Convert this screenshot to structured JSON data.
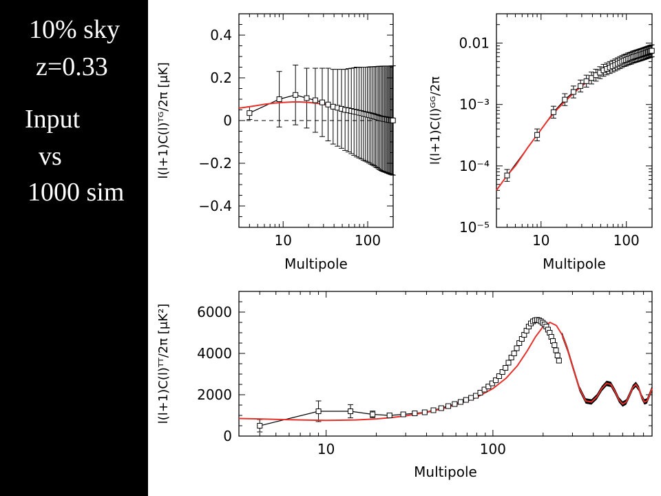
{
  "sidebar": {
    "line1": "10% sky",
    "line2": "z=0.33",
    "line3": "Input",
    "line4": "vs",
    "line5": "1000 sim"
  },
  "colors": {
    "sidebar_bg": "#000000",
    "model_line": "#e8302a",
    "data_line": "#000000"
  },
  "chart_data": [
    {
      "id": "tg",
      "type": "line",
      "xscale": "log",
      "xlim": [
        3,
        200
      ],
      "ylim": [
        -0.5,
        0.5
      ],
      "xlabel": "Multipole",
      "ylabel": "l(l+1)C(l)ᵀᴳ/2π  [μK]",
      "xticks": [
        10,
        100
      ],
      "xtick_labels": [
        "10",
        "100"
      ],
      "yticks": [
        -0.4,
        -0.2,
        0,
        0.2,
        0.4
      ],
      "ytick_labels": [
        "−0.4",
        "−0.2",
        "0",
        "0.2",
        "0.4"
      ],
      "zero_line": true,
      "series": [
        {
          "role": "data",
          "marker": "square",
          "x": [
            4,
            9,
            14,
            19,
            24,
            29,
            34,
            39,
            44,
            49,
            54,
            59,
            64,
            69,
            74,
            79,
            84,
            89,
            94,
            99,
            104,
            109,
            114,
            119,
            124,
            129,
            134,
            139,
            144,
            149,
            154,
            159,
            164,
            169,
            174,
            179,
            184,
            189,
            194,
            199
          ],
          "y": [
            0.035,
            0.1,
            0.12,
            0.105,
            0.095,
            0.085,
            0.075,
            0.065,
            0.06,
            0.055,
            0.05,
            0.048,
            0.045,
            0.042,
            0.04,
            0.037,
            0.035,
            0.032,
            0.03,
            0.028,
            0.026,
            0.024,
            0.022,
            0.02,
            0.018,
            0.016,
            0.014,
            0.012,
            0.01,
            0.009,
            0.008,
            0.007,
            0.006,
            0.005,
            0.004,
            0.003,
            0.002,
            0.0015,
            0.001,
            0.0005
          ],
          "err": [
            0.03,
            0.13,
            0.14,
            0.14,
            0.15,
            0.16,
            0.17,
            0.175,
            0.18,
            0.185,
            0.19,
            0.195,
            0.2,
            0.205,
            0.21,
            0.212,
            0.215,
            0.218,
            0.22,
            0.222,
            0.225,
            0.228,
            0.23,
            0.232,
            0.235,
            0.237,
            0.24,
            0.242,
            0.244,
            0.246,
            0.247,
            0.248,
            0.249,
            0.25,
            0.251,
            0.252,
            0.253,
            0.254,
            0.255,
            0.256
          ]
        },
        {
          "role": "model",
          "x": [
            3,
            4,
            5,
            6,
            8,
            10,
            13,
            16,
            20,
            25,
            30,
            40,
            50,
            60,
            70,
            80,
            100,
            120,
            140,
            160,
            180,
            200
          ],
          "y": [
            0.058,
            0.065,
            0.071,
            0.076,
            0.082,
            0.085,
            0.087,
            0.087,
            0.085,
            0.081,
            0.076,
            0.066,
            0.057,
            0.049,
            0.042,
            0.036,
            0.027,
            0.02,
            0.015,
            0.011,
            0.008,
            0.005
          ]
        }
      ]
    },
    {
      "id": "gg",
      "type": "line",
      "xscale": "log",
      "yscale": "log",
      "xlim": [
        3,
        200
      ],
      "ylim": [
        1e-05,
        0.03
      ],
      "xlabel": "Multipole",
      "ylabel": "l(l+1)C(l)ᴳᴳ/2π",
      "xticks": [
        10,
        100
      ],
      "xtick_labels": [
        "10",
        "100"
      ],
      "yticks": [
        1e-05,
        0.0001,
        0.001,
        0.01
      ],
      "ytick_labels": [
        "10⁻⁵",
        "10⁻⁴",
        "10⁻³",
        "0.01"
      ],
      "series": [
        {
          "role": "data",
          "marker": "square",
          "x": [
            4,
            9,
            14,
            19,
            24,
            29,
            34,
            39,
            44,
            49,
            54,
            59,
            64,
            69,
            74,
            79,
            84,
            89,
            94,
            99,
            104,
            109,
            114,
            119,
            124,
            129,
            134,
            139,
            144,
            149,
            154,
            159,
            164,
            169,
            174,
            179,
            184,
            189,
            194,
            199
          ],
          "y": [
            7e-05,
            0.00032,
            0.00075,
            0.0012,
            0.0016,
            0.002,
            0.0024,
            0.0027,
            0.003,
            0.0033,
            0.0036,
            0.0038,
            0.004,
            0.0042,
            0.0044,
            0.0046,
            0.0048,
            0.005,
            0.0052,
            0.0053,
            0.0055,
            0.0056,
            0.0057,
            0.0059,
            0.006,
            0.0061,
            0.0062,
            0.0063,
            0.0064,
            0.0065,
            0.0066,
            0.0067,
            0.0068,
            0.0069,
            0.007,
            0.0071,
            0.0072,
            0.0073,
            0.0074,
            0.0075
          ],
          "err_factor": 1.25
        },
        {
          "role": "model",
          "x": [
            3,
            4,
            5,
            7,
            9,
            12,
            15,
            20,
            25,
            30,
            40,
            50,
            60,
            80,
            100,
            130,
            160,
            200
          ],
          "y": [
            4e-05,
            7e-05,
            0.0001,
            0.0002,
            0.00032,
            0.00055,
            0.0008,
            0.0012,
            0.0016,
            0.002,
            0.0027,
            0.0033,
            0.0038,
            0.0046,
            0.0053,
            0.0062,
            0.0069,
            0.0077
          ]
        }
      ]
    },
    {
      "id": "tt",
      "type": "line",
      "xscale": "log",
      "xlim": [
        3,
        900
      ],
      "ylim": [
        0,
        7000
      ],
      "xlabel": "Multipole",
      "ylabel": "l(l+1)C(l)ᵀᵀ/2π  [μK²]",
      "xticks": [
        10,
        100
      ],
      "xtick_labels": [
        "10",
        "100"
      ],
      "yticks": [
        0,
        2000,
        4000,
        6000
      ],
      "ytick_labels": [
        "0",
        "2000",
        "4000",
        "6000"
      ],
      "series": [
        {
          "role": "data",
          "marker": "square",
          "x": [
            4,
            9,
            14,
            19,
            24,
            29,
            34,
            39,
            44,
            49,
            54,
            59,
            64,
            69,
            74,
            79,
            84,
            89,
            94,
            99,
            104,
            109,
            114,
            119,
            124,
            129,
            134,
            139,
            144,
            149,
            154,
            159,
            164,
            169,
            174,
            179,
            184,
            189,
            194,
            199,
            204,
            209,
            214,
            219,
            224,
            229,
            234,
            239,
            244,
            249
          ],
          "y": [
            500,
            1200,
            1200,
            1050,
            1000,
            1050,
            1100,
            1150,
            1250,
            1350,
            1450,
            1550,
            1650,
            1750,
            1850,
            1950,
            2100,
            2250,
            2400,
            2550,
            2700,
            2900,
            3100,
            3300,
            3550,
            3800,
            4000,
            4250,
            4500,
            4700,
            4900,
            5100,
            5300,
            5450,
            5550,
            5600,
            5620,
            5600,
            5550,
            5480,
            5400,
            5300,
            5150,
            5000,
            4800,
            4600,
            4400,
            4150,
            3900,
            3650
          ],
          "err": [
            300,
            500,
            320,
            160,
            110,
            90,
            80,
            70,
            65,
            60,
            60,
            60,
            60,
            60,
            60,
            60,
            60,
            65,
            65,
            65,
            65,
            70,
            70,
            70,
            75,
            75,
            80,
            80,
            80,
            85,
            85,
            85,
            90,
            90,
            90,
            90,
            90,
            90,
            90,
            90,
            90,
            90,
            90,
            90,
            90,
            90,
            90,
            90,
            90,
            90
          ]
        },
        {
          "role": "model",
          "x": [
            3,
            4,
            6,
            8,
            10,
            12,
            15,
            20,
            25,
            30,
            40,
            50,
            60,
            70,
            80,
            100,
            120,
            140,
            160,
            180,
            200,
            220,
            240,
            260,
            280,
            300,
            330,
            360,
            390,
            420,
            450,
            480,
            510,
            540,
            570,
            600,
            630,
            660,
            690,
            720,
            750,
            780,
            810,
            840,
            870,
            900
          ],
          "y": [
            850,
            830,
            790,
            770,
            760,
            765,
            780,
            830,
            900,
            980,
            1150,
            1330,
            1520,
            1700,
            1880,
            2300,
            2800,
            3400,
            4100,
            4800,
            5300,
            5500,
            5350,
            4900,
            4200,
            3400,
            2300,
            1700,
            1650,
            1900,
            2300,
            2550,
            2500,
            2150,
            1750,
            1550,
            1650,
            2000,
            2350,
            2500,
            2300,
            1900,
            1650,
            1700,
            2000,
            2300
          ]
        }
      ]
    }
  ]
}
